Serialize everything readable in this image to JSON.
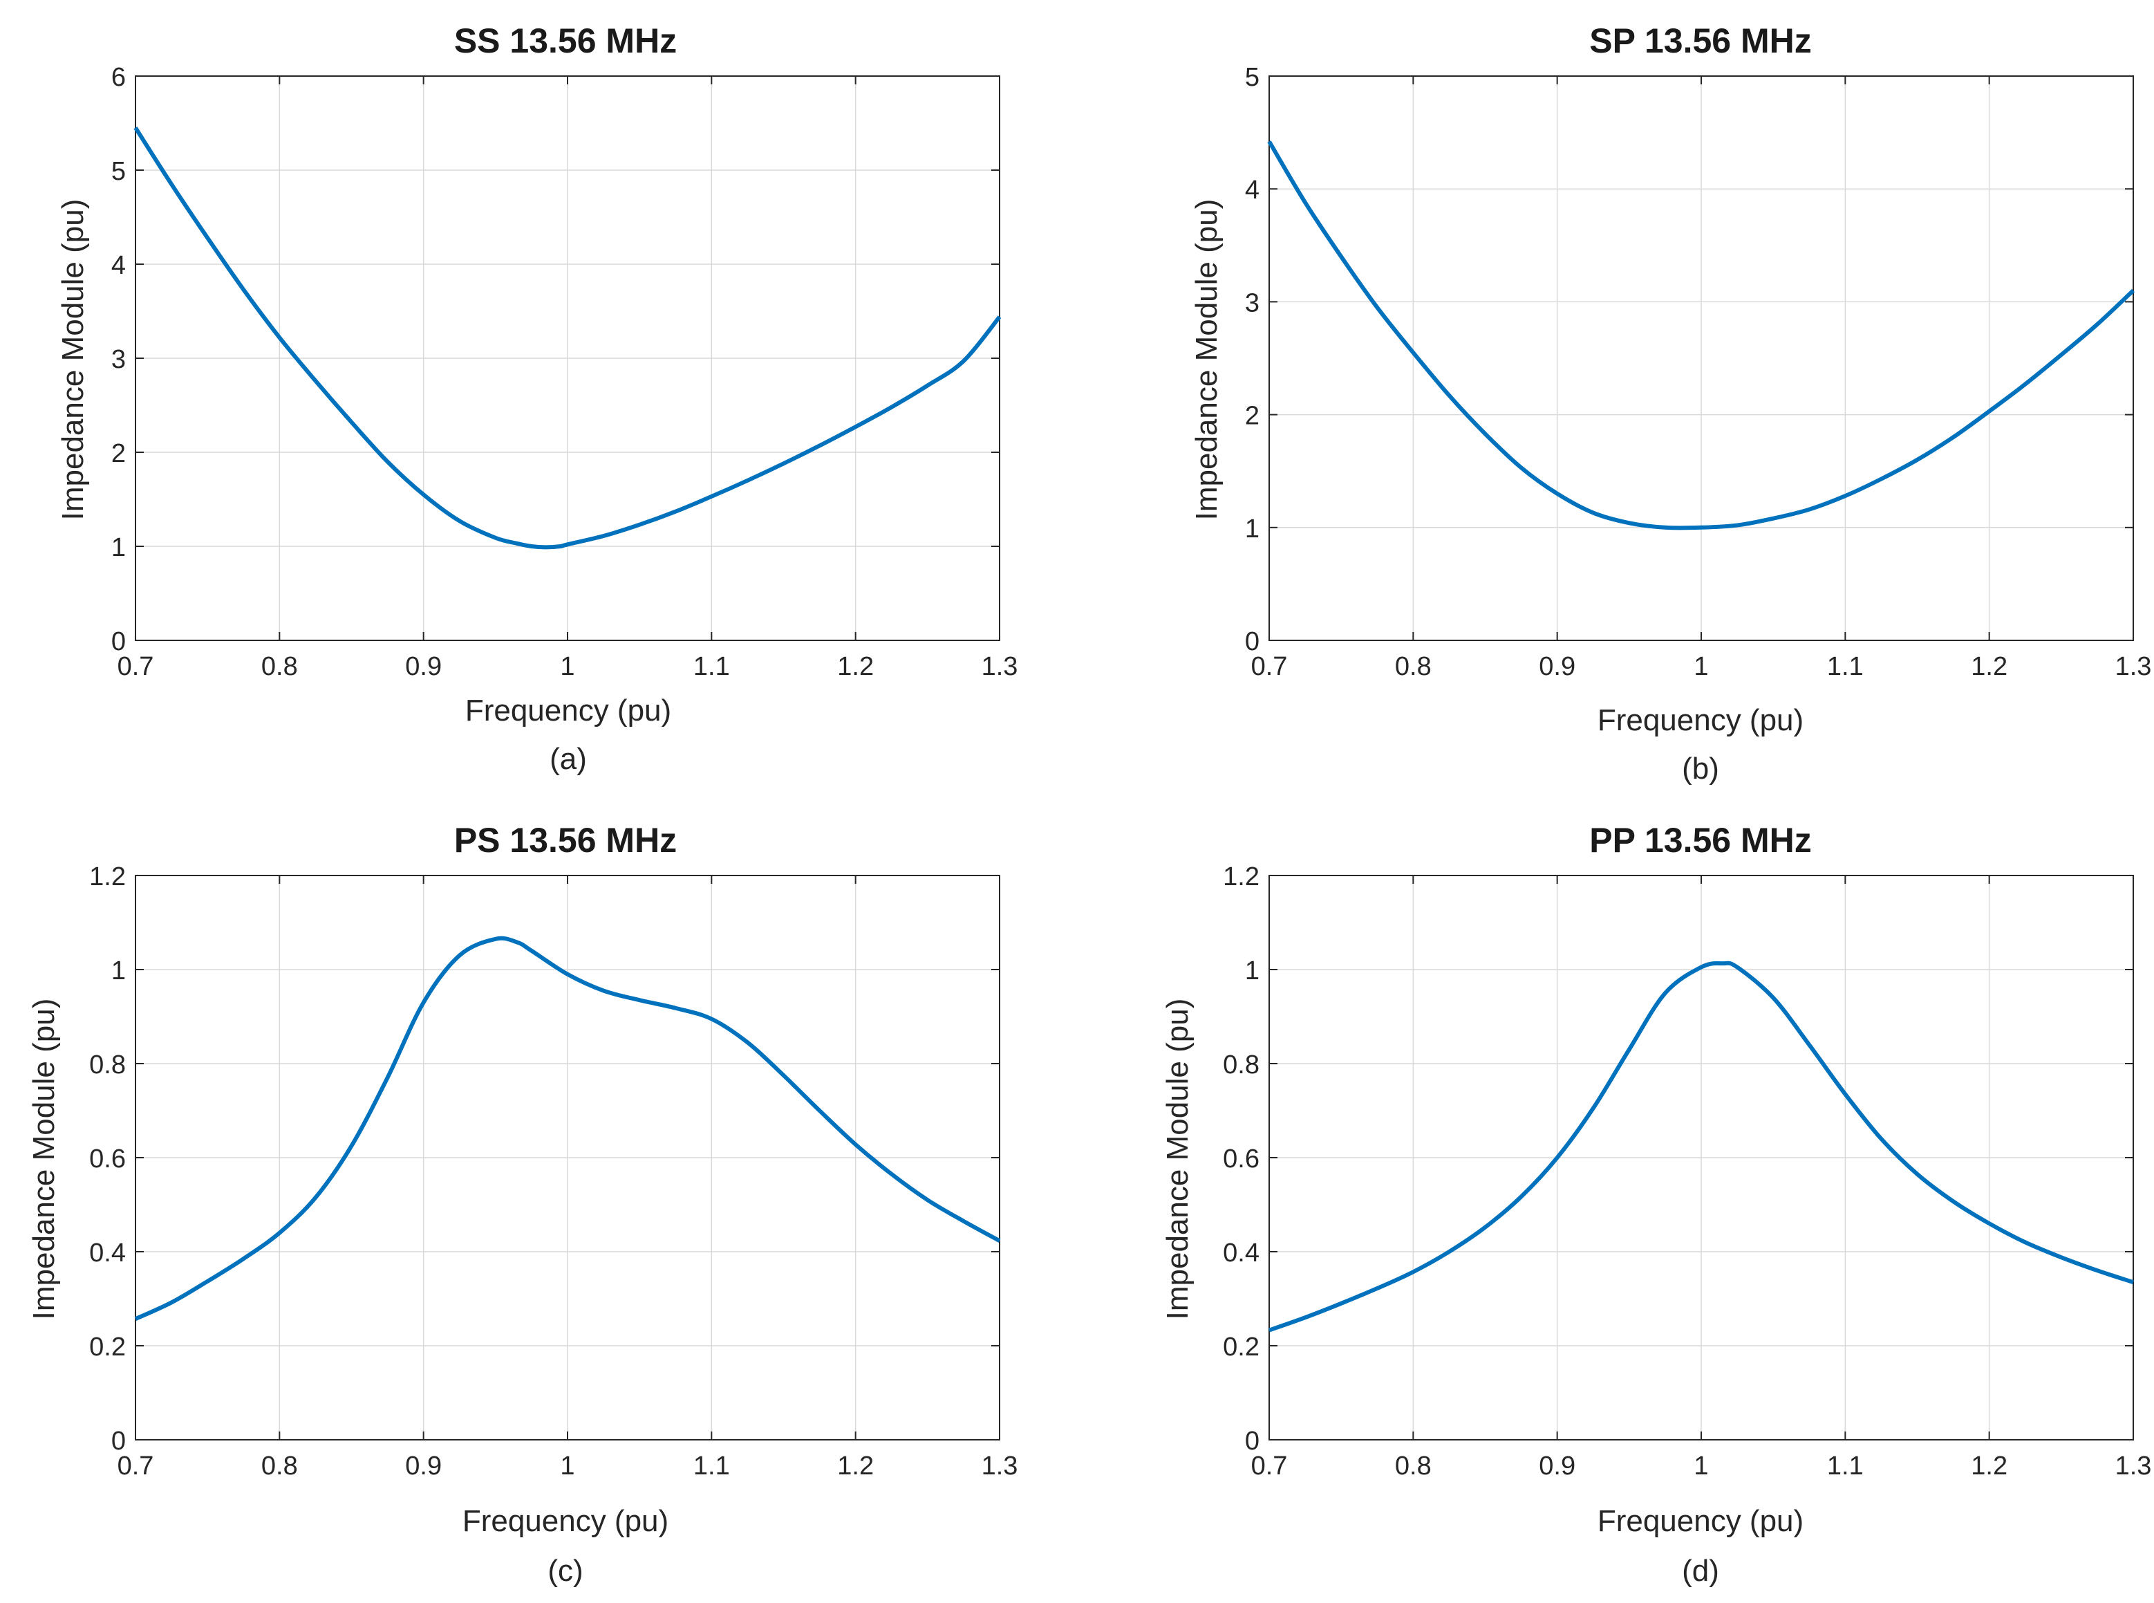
{
  "figure": {
    "line_color": "#0072BD",
    "grid_color": "#d9d9d9",
    "axis_color": "#262626"
  },
  "chart_data": [
    {
      "type": "line",
      "panel": "a",
      "title": "SS 13.56 MHz",
      "xlabel": "Frequency (pu)",
      "ylabel": "Impedance Module (pu)",
      "caption": "(a)",
      "xlim": [
        0.7,
        1.3
      ],
      "ylim": [
        0,
        6
      ],
      "xticks": [
        0.7,
        0.8,
        0.9,
        1,
        1.1,
        1.2,
        1.3
      ],
      "yticks": [
        0,
        1,
        2,
        3,
        4,
        5,
        6
      ],
      "grid": true,
      "series": [
        {
          "name": "SS",
          "x": [
            0.7,
            0.725,
            0.75,
            0.775,
            0.8,
            0.825,
            0.85,
            0.875,
            0.9,
            0.925,
            0.95,
            0.965,
            0.975,
            0.985,
            0.995,
            1.0,
            1.025,
            1.05,
            1.075,
            1.1,
            1.125,
            1.15,
            1.175,
            1.2,
            1.225,
            1.25,
            1.275,
            1.3
          ],
          "y": [
            5.45,
            4.85,
            4.28,
            3.73,
            3.22,
            2.76,
            2.32,
            1.9,
            1.55,
            1.27,
            1.09,
            1.03,
            1.0,
            0.99,
            1.0,
            1.02,
            1.11,
            1.23,
            1.37,
            1.53,
            1.7,
            1.88,
            2.07,
            2.27,
            2.48,
            2.71,
            2.97,
            3.44
          ]
        }
      ]
    },
    {
      "type": "line",
      "panel": "b",
      "title": "SP 13.56 MHz",
      "xlabel": "Frequency (pu)",
      "ylabel": "Impedance Module (pu)",
      "caption": "(b)",
      "xlim": [
        0.7,
        1.3
      ],
      "ylim": [
        0,
        5
      ],
      "xticks": [
        0.7,
        0.8,
        0.9,
        1,
        1.1,
        1.2,
        1.3
      ],
      "yticks": [
        0,
        1,
        2,
        3,
        4,
        5
      ],
      "grid": true,
      "series": [
        {
          "name": "SP",
          "x": [
            0.7,
            0.725,
            0.75,
            0.775,
            0.8,
            0.825,
            0.85,
            0.875,
            0.9,
            0.925,
            0.95,
            0.975,
            1.0,
            1.025,
            1.05,
            1.075,
            1.1,
            1.125,
            1.15,
            1.175,
            1.2,
            1.225,
            1.25,
            1.275,
            1.3
          ],
          "y": [
            4.42,
            3.88,
            3.4,
            2.95,
            2.55,
            2.17,
            1.83,
            1.53,
            1.3,
            1.13,
            1.04,
            1.0,
            1.0,
            1.02,
            1.08,
            1.16,
            1.28,
            1.43,
            1.6,
            1.8,
            2.03,
            2.27,
            2.53,
            2.8,
            3.1
          ]
        }
      ]
    },
    {
      "type": "line",
      "panel": "c",
      "title": "PS 13.56 MHz",
      "xlabel": "Frequency (pu)",
      "ylabel": "Impedance Module (pu)",
      "caption": "(c)",
      "xlim": [
        0.7,
        1.3
      ],
      "ylim": [
        0,
        1.2
      ],
      "xticks": [
        0.7,
        0.8,
        0.9,
        1,
        1.1,
        1.2,
        1.3
      ],
      "yticks": [
        0,
        0.2,
        0.4,
        0.6,
        0.8,
        1,
        1.2
      ],
      "grid": true,
      "series": [
        {
          "name": "PS",
          "x": [
            0.7,
            0.725,
            0.75,
            0.775,
            0.8,
            0.825,
            0.85,
            0.875,
            0.9,
            0.925,
            0.95,
            0.965,
            0.975,
            1.0,
            1.025,
            1.05,
            1.075,
            1.1,
            1.125,
            1.15,
            1.175,
            1.2,
            1.225,
            1.25,
            1.275,
            1.3
          ],
          "y": [
            0.257,
            0.292,
            0.337,
            0.385,
            0.44,
            0.515,
            0.625,
            0.77,
            0.93,
            1.03,
            1.065,
            1.058,
            1.04,
            0.99,
            0.955,
            0.935,
            0.918,
            0.895,
            0.845,
            0.775,
            0.7,
            0.628,
            0.565,
            0.51,
            0.465,
            0.423
          ]
        }
      ]
    },
    {
      "type": "line",
      "panel": "d",
      "title": "PP 13.56 MHz",
      "xlabel": "Frequency (pu)",
      "ylabel": "Impedance Module (pu)",
      "caption": "(d)",
      "xlim": [
        0.7,
        1.3
      ],
      "ylim": [
        0,
        1.2
      ],
      "xticks": [
        0.7,
        0.8,
        0.9,
        1,
        1.1,
        1.2,
        1.3
      ],
      "yticks": [
        0,
        0.2,
        0.4,
        0.6,
        0.8,
        1,
        1.2
      ],
      "grid": true,
      "series": [
        {
          "name": "PP",
          "x": [
            0.7,
            0.725,
            0.75,
            0.775,
            0.8,
            0.825,
            0.85,
            0.875,
            0.9,
            0.925,
            0.95,
            0.975,
            1.0,
            1.015,
            1.025,
            1.05,
            1.075,
            1.1,
            1.125,
            1.15,
            1.175,
            1.2,
            1.225,
            1.25,
            1.275,
            1.3
          ],
          "y": [
            0.233,
            0.26,
            0.29,
            0.322,
            0.357,
            0.4,
            0.452,
            0.517,
            0.6,
            0.705,
            0.83,
            0.95,
            1.005,
            1.013,
            1.005,
            0.94,
            0.84,
            0.735,
            0.64,
            0.565,
            0.507,
            0.46,
            0.42,
            0.388,
            0.36,
            0.335
          ]
        }
      ]
    }
  ]
}
